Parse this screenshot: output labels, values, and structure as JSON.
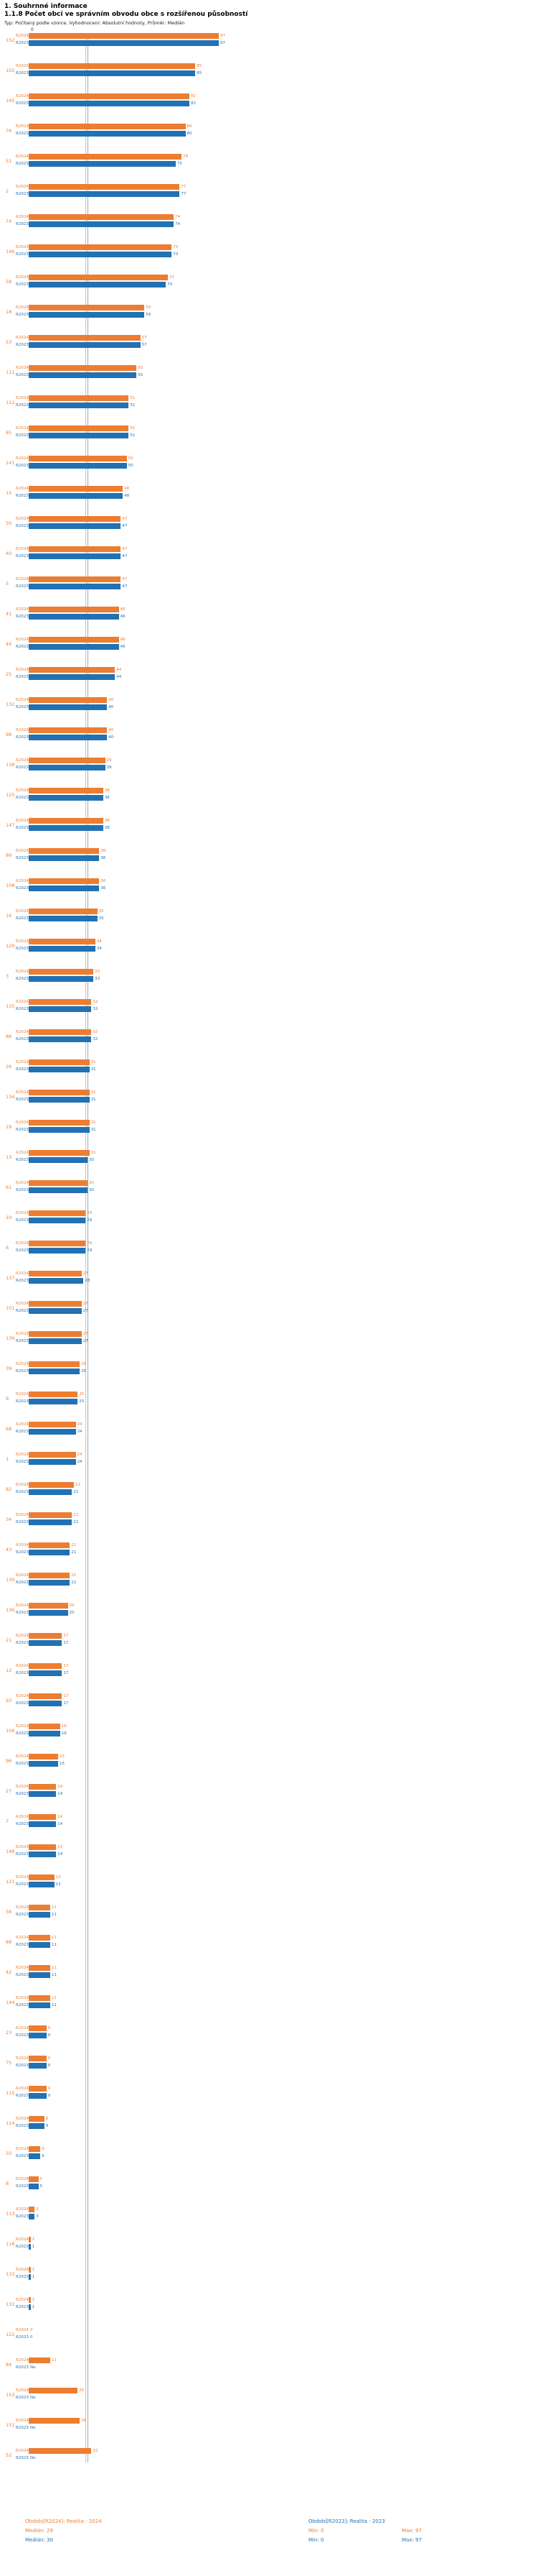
{
  "header": {
    "title": "1. Souhrnné informace",
    "subtitle": "1.1.8 Počet obcí ve správním obvodu obce s rozšířenou působností",
    "meta": "Typ: Počítaný podle vzorce, Vyhodnocení: Absolutní hodnoty, Průměr: Medián"
  },
  "axis": {
    "zero_label": "0",
    "min": 0,
    "max": 97
  },
  "colors": {
    "r2024": "#ed7d31",
    "r2023": "#2271b3"
  },
  "footer": {
    "legend_r2024": "Období[R2024]: Realita - 2024",
    "legend_r2023": "Období[R2023]: Realita - 2023",
    "median_r2024": "Medián: 29",
    "median_r2023": "Medián: 30",
    "min_r2024": "Min: 0",
    "max_r2024": "Max: 97",
    "min_r2023": "Min: 0",
    "max_r2023": "Max: 97"
  },
  "chart_data": {
    "type": "bar",
    "orientation": "horizontal",
    "title": "1.1.8 Počet obcí ve správním obvodu obce s rozšířenou působností",
    "xlim": [
      0,
      97
    ],
    "grid": false,
    "medians": {
      "R2024": 29,
      "R2023": 30
    },
    "missing_value_label": "Ne",
    "categories": [
      "152",
      "102",
      "145",
      "76",
      "51",
      "2",
      "74",
      "146",
      "58",
      "18",
      "53",
      "111",
      "112",
      "85",
      "141",
      "15",
      "50",
      "40",
      "5",
      "41",
      "44",
      "25",
      "132",
      "98",
      "138",
      "125",
      "147",
      "89",
      "108",
      "16",
      "129",
      "3",
      "135",
      "86",
      "26",
      "134",
      "19",
      "13",
      "61",
      "10",
      "6",
      "137",
      "101",
      "139",
      "39",
      "9",
      "68",
      "1",
      "82",
      "34",
      "43",
      "130",
      "136",
      "21",
      "12",
      "93",
      "106",
      "96",
      "27",
      "7",
      "148",
      "121",
      "56",
      "88",
      "42",
      "144",
      "23",
      "75",
      "115",
      "114",
      "33",
      "8",
      "113",
      "118",
      "133",
      "131",
      "122",
      "84",
      "153",
      "151",
      "52"
    ],
    "series": [
      {
        "key": "R2024",
        "row_label": "R2024",
        "name": "Období[R2024]: Realita - 2024",
        "color": "#ed7d31",
        "values": [
          97,
          85,
          82,
          80,
          78,
          77,
          74,
          73,
          71,
          59,
          57,
          55,
          51,
          51,
          50,
          48,
          47,
          47,
          47,
          46,
          46,
          44,
          40,
          40,
          39,
          38,
          38,
          36,
          36,
          35,
          34,
          33,
          32,
          32,
          31,
          31,
          31,
          31,
          30,
          29,
          29,
          27,
          27,
          27,
          26,
          25,
          24,
          24,
          23,
          22,
          21,
          21,
          20,
          17,
          17,
          17,
          16,
          15,
          14,
          14,
          14,
          13,
          11,
          11,
          11,
          11,
          9,
          9,
          9,
          8,
          6,
          5,
          3,
          1,
          1,
          1,
          0,
          11,
          25,
          26,
          32
        ]
      },
      {
        "key": "R2023",
        "row_label": "R2023",
        "name": "Období[R2023]: Realita - 2023",
        "color": "#2271b3",
        "values": [
          97,
          85,
          82,
          80,
          75,
          77,
          74,
          73,
          70,
          59,
          57,
          55,
          51,
          51,
          50,
          48,
          47,
          47,
          47,
          46,
          46,
          44,
          40,
          40,
          39,
          38,
          38,
          36,
          36,
          35,
          34,
          33,
          32,
          32,
          31,
          31,
          31,
          30,
          30,
          29,
          29,
          28,
          27,
          27,
          26,
          25,
          24,
          24,
          22,
          22,
          21,
          21,
          20,
          17,
          17,
          17,
          16,
          15,
          14,
          14,
          14,
          13,
          11,
          11,
          11,
          11,
          9,
          9,
          9,
          8,
          6,
          5,
          3,
          1,
          1,
          1,
          0,
          "Ne",
          "Ne",
          "Ne",
          "Ne"
        ]
      }
    ]
  }
}
